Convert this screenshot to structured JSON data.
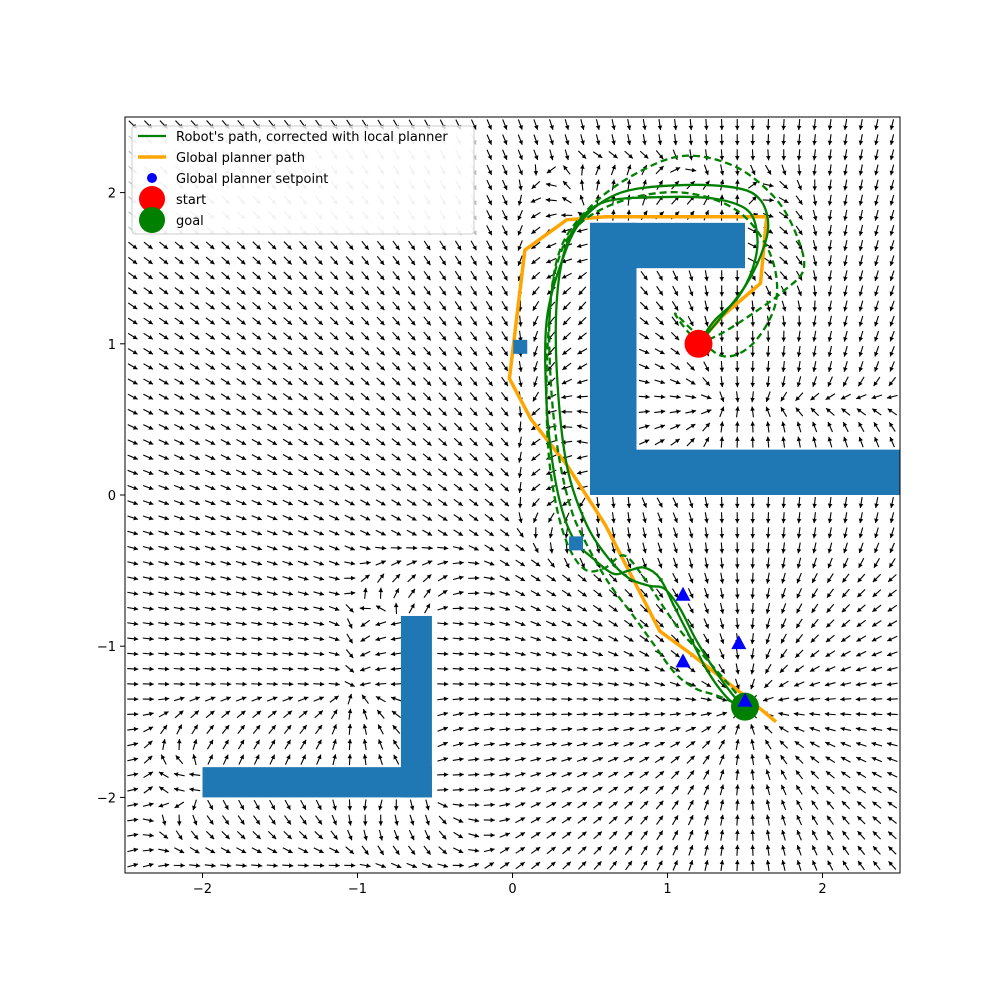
{
  "chart_data": {
    "type": "line",
    "xlim": [
      -2.5,
      2.5
    ],
    "ylim": [
      -2.5,
      2.5
    ],
    "x_ticks": [
      -2,
      -1,
      0,
      1,
      2
    ],
    "y_ticks": [
      -2,
      -1,
      0,
      1,
      2
    ],
    "x_tick_labels": [
      "−2",
      "−1",
      "0",
      "1",
      "2"
    ],
    "y_tick_labels": [
      "−2",
      "−1",
      "0",
      "1",
      "2"
    ],
    "grid": false,
    "legend_position": "top-left",
    "legend": [
      {
        "label": "Robot's path, corrected with local planner",
        "marker": "line",
        "color": "#008000"
      },
      {
        "label": "Global planner path",
        "marker": "line",
        "color": "#ffa500"
      },
      {
        "label": "Global planner setpoint",
        "marker": "dot",
        "color": "#0000ff"
      },
      {
        "label": "start",
        "marker": "dot",
        "color": "#ff0000"
      },
      {
        "label": "goal",
        "marker": "dot",
        "color": "#008000"
      }
    ],
    "obstacles": [
      {
        "shape": "rect",
        "x0": 0.5,
        "x1": 0.8,
        "y0": 0.0,
        "y1": 1.8
      },
      {
        "shape": "rect",
        "x0": 0.5,
        "x1": 1.5,
        "y0": 1.5,
        "y1": 1.8
      },
      {
        "shape": "rect",
        "x0": 0.5,
        "x1": 2.5,
        "y0": 0.0,
        "y1": 0.3
      },
      {
        "shape": "rect",
        "x0": -0.72,
        "x1": -0.52,
        "y0": -2.0,
        "y1": -0.8
      },
      {
        "shape": "rect",
        "x0": -2.0,
        "x1": -0.52,
        "y0": -2.0,
        "y1": -1.8
      }
    ],
    "obstacle_color": "#1f77b4",
    "global_path": {
      "color": "#ffa500",
      "x": [
        1.7,
        1.5,
        1.15,
        0.95,
        0.6,
        0.35,
        0.12,
        -0.02,
        0.08,
        0.35,
        0.6,
        1.64,
        1.6,
        1.35,
        1.2
      ],
      "y": [
        -1.5,
        -1.33,
        -1.05,
        -0.9,
        -0.2,
        0.2,
        0.5,
        0.77,
        1.62,
        1.82,
        1.84,
        1.84,
        1.4,
        1.18,
        1.0
      ]
    },
    "robot_paths": [
      {
        "style": "solid",
        "color": "#008000",
        "x": [
          1.2,
          1.35,
          1.5,
          1.6,
          1.65,
          1.6,
          1.45,
          1.1,
          0.7,
          0.45,
          0.32,
          0.22,
          0.22,
          0.26,
          0.32,
          0.4,
          0.52,
          0.65,
          0.75,
          0.85,
          0.95,
          1.05,
          1.15,
          1.25,
          1.35,
          1.43,
          1.5
        ],
        "y": [
          1.0,
          1.18,
          1.38,
          1.58,
          1.78,
          1.95,
          2.03,
          2.05,
          2.0,
          1.82,
          1.55,
          1.15,
          0.6,
          0.2,
          -0.1,
          -0.3,
          -0.42,
          -0.52,
          -0.5,
          -0.48,
          -0.55,
          -0.75,
          -0.95,
          -1.15,
          -1.3,
          -1.38,
          -1.4
        ]
      },
      {
        "style": "solid",
        "color": "#008000",
        "x": [
          1.2,
          1.3,
          1.45,
          1.55,
          1.58,
          1.52,
          1.3,
          0.95,
          0.6,
          0.42,
          0.32,
          0.28,
          0.3,
          0.36,
          0.48,
          0.62,
          0.75,
          0.88,
          0.98,
          1.08,
          1.18,
          1.3,
          1.42,
          1.5
        ],
        "y": [
          1.0,
          1.15,
          1.3,
          1.5,
          1.7,
          1.88,
          1.96,
          1.97,
          1.94,
          1.8,
          1.55,
          1.15,
          0.6,
          0.15,
          -0.2,
          -0.42,
          -0.55,
          -0.6,
          -0.62,
          -0.75,
          -0.95,
          -1.15,
          -1.32,
          -1.4
        ]
      },
      {
        "style": "dashed",
        "color": "#008000",
        "x": [
          1.2,
          1.35,
          1.55,
          1.75,
          1.88,
          1.82,
          1.68,
          1.42,
          1.08,
          0.72,
          0.45,
          0.3,
          0.24,
          0.25,
          0.3,
          0.38,
          0.48,
          0.62,
          0.78,
          0.92,
          1.05,
          1.18,
          1.3,
          1.4,
          1.48
        ],
        "y": [
          1.0,
          1.07,
          1.2,
          1.35,
          1.5,
          1.75,
          1.98,
          2.18,
          2.24,
          2.08,
          1.85,
          1.6,
          1.2,
          0.7,
          0.25,
          -0.1,
          -0.33,
          -0.58,
          -0.8,
          -1.0,
          -1.18,
          -1.28,
          -1.32,
          -1.36,
          -1.4
        ]
      },
      {
        "style": "dashed",
        "color": "#008000",
        "x": [
          1.2,
          1.1,
          1.05,
          1.15,
          1.35,
          1.55,
          1.7,
          1.66,
          1.45,
          1.1,
          0.72,
          0.42,
          0.28,
          0.23,
          0.22,
          0.24,
          0.3,
          0.38,
          0.48,
          0.6,
          0.72,
          0.85,
          0.98,
          1.1,
          1.22,
          1.35,
          1.45,
          1.5
        ],
        "y": [
          1.0,
          1.12,
          1.2,
          1.1,
          0.92,
          1.0,
          1.28,
          1.6,
          1.88,
          2.0,
          1.95,
          1.78,
          1.5,
          1.05,
          0.6,
          0.2,
          -0.15,
          -0.38,
          -0.5,
          -0.48,
          -0.4,
          -0.55,
          -0.75,
          -0.92,
          -1.05,
          -1.2,
          -1.32,
          -1.4
        ]
      }
    ],
    "setpoints_square": [
      {
        "x": 0.05,
        "y": 0.98
      },
      {
        "x": 0.41,
        "y": -0.32
      }
    ],
    "setpoints_triangle": [
      {
        "x": 1.1,
        "y": -0.66
      },
      {
        "x": 1.46,
        "y": -0.98
      },
      {
        "x": 1.1,
        "y": -1.1
      },
      {
        "x": 1.5,
        "y": -1.36
      }
    ],
    "start": {
      "x": 1.2,
      "y": 1.0,
      "color": "#ff0000"
    },
    "goal": {
      "x": 1.5,
      "y": -1.4,
      "color": "#008000"
    },
    "vector_field": {
      "spacing": 0.1,
      "color": "#000000",
      "legend_region_color": "#bbbbbb"
    }
  }
}
